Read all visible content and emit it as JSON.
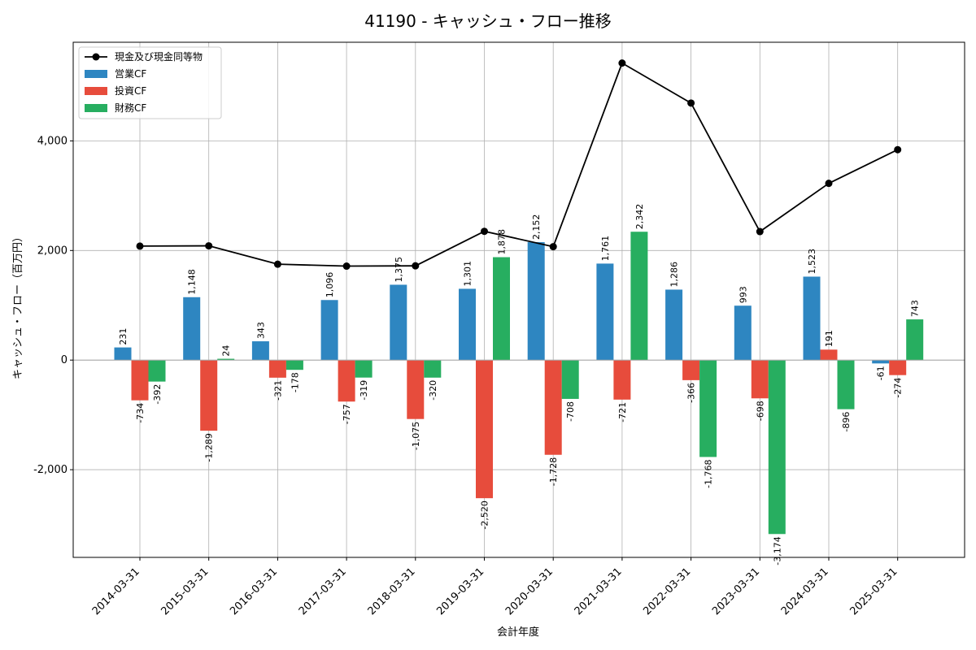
{
  "chart_data": {
    "type": "bar",
    "title": "41190 - キャッシュ・フロー推移",
    "xlabel": "会計年度",
    "ylabel": "キャッシュ・フロー（百万円）",
    "ylim": [
      -3600,
      5800
    ],
    "yticks": [
      -2000,
      0,
      2000,
      4000
    ],
    "ytick_labels": [
      "-2,000",
      "0",
      "2,000",
      "4,000"
    ],
    "grid": true,
    "legend_position": "top-left",
    "categories": [
      "2014-03-31",
      "2015-03-31",
      "2016-03-31",
      "2017-03-31",
      "2018-03-31",
      "2019-03-31",
      "2020-03-31",
      "2021-03-31",
      "2022-03-31",
      "2023-03-31",
      "2024-03-31",
      "2025-03-31"
    ],
    "series": [
      {
        "name": "営業CF",
        "kind": "bar",
        "color": "#2e86c1",
        "values": [
          231,
          1148,
          343,
          1096,
          1375,
          1301,
          2152,
          1761,
          1286,
          993,
          1523,
          -61
        ],
        "labels": [
          "231",
          "1,148",
          "343",
          "1,096",
          "1,375",
          "1,301",
          "2,152",
          "1,761",
          "1,286",
          "993",
          "1,523",
          "-61"
        ]
      },
      {
        "name": "投資CF",
        "kind": "bar",
        "color": "#e74c3c",
        "values": [
          -734,
          -1289,
          -321,
          -757,
          -1075,
          -2520,
          -1728,
          -721,
          -366,
          -698,
          191,
          -274
        ],
        "labels": [
          "-734",
          "-1,289",
          "-321",
          "-757",
          "-1,075",
          "-2,520",
          "-1,728",
          "-721",
          "-366",
          "-698",
          "191",
          "-274"
        ]
      },
      {
        "name": "財務CF",
        "kind": "bar",
        "color": "#27ae60",
        "values": [
          -392,
          24,
          -178,
          -319,
          -320,
          1878,
          -708,
          2342,
          -1768,
          -3174,
          -896,
          743
        ],
        "labels": [
          "-392",
          "24",
          "-178",
          "-319",
          "-320",
          "1,878",
          "-708",
          "2,342",
          "-1,768",
          "-3,174",
          "-896",
          "743"
        ]
      }
    ],
    "line": {
      "name": "現金及び現金同等物",
      "color": "#000000",
      "values": [
        2080,
        2085,
        1750,
        1715,
        1720,
        2350,
        2070,
        5420,
        4690,
        2345,
        3225,
        3840
      ]
    }
  }
}
